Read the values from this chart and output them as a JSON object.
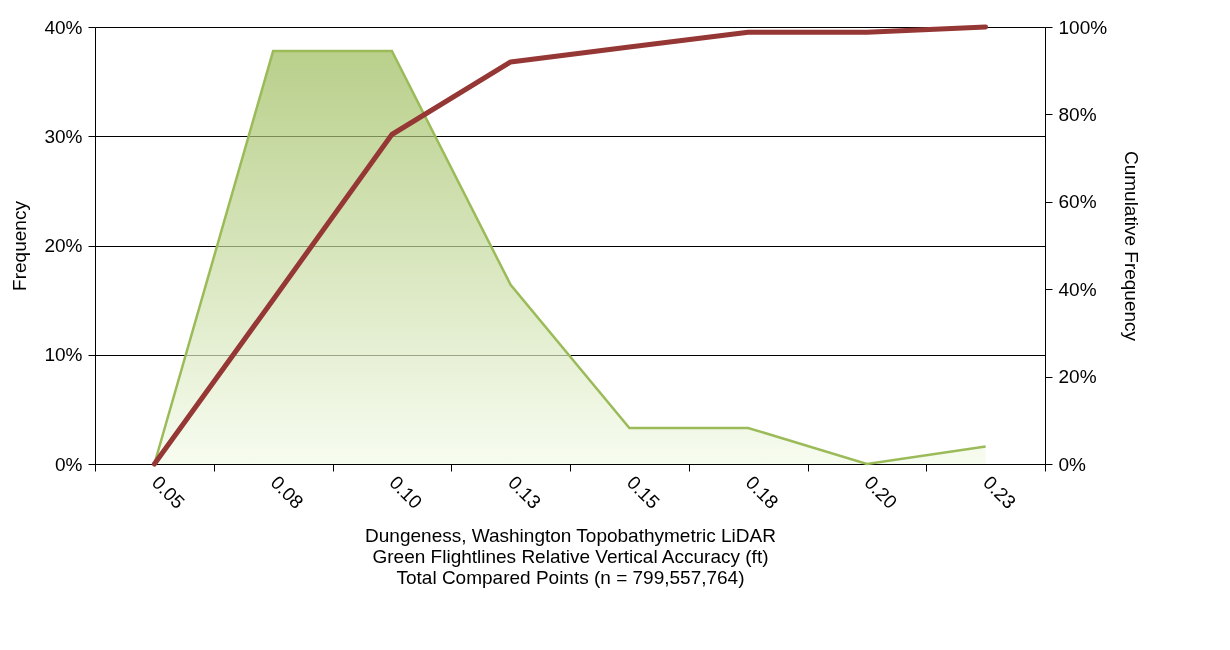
{
  "chart_data": {
    "type": "area",
    "xlabel": "Dungeness, Washington Topobathymetric LiDAR\nGreen Flightlines Relative Vertical Accuracy (ft)\nTotal Compared Points (n = 799,557,764)",
    "ylabel": "Frequency",
    "y2label": "Cumulative Frequency",
    "categories": [
      "0.05",
      "0.08",
      "0.10",
      "0.13",
      "0.15",
      "0.18",
      "0.20",
      "0.23"
    ],
    "series": [
      {
        "color": "#9bbb59",
        "values": [
          0,
          37.8,
          37.8,
          16.4,
          3.3,
          3.3,
          0,
          1.6
        ]
      },
      {
        "type": "line",
        "axis": "y2",
        "color": "#953735",
        "values": [
          0,
          37.6,
          75.4,
          92,
          95.4,
          98.8,
          98.8,
          100
        ]
      }
    ],
    "ylim": [
      0,
      40
    ],
    "yticks": [
      {
        "value": 0,
        "label": "0%"
      },
      {
        "value": 10,
        "label": "10%"
      },
      {
        "value": 20,
        "label": "20%"
      },
      {
        "value": 30,
        "label": "30%"
      },
      {
        "value": 40,
        "label": "40%"
      }
    ],
    "y2lim": [
      0,
      100
    ],
    "y2ticks": [
      {
        "value": 0,
        "label": "0%"
      },
      {
        "value": 20,
        "label": "20%"
      },
      {
        "value": 40,
        "label": "40%"
      },
      {
        "value": 60,
        "label": "60%"
      },
      {
        "value": 80,
        "label": "80%"
      },
      {
        "value": 100,
        "label": "100%"
      }
    ],
    "grid": "y"
  }
}
